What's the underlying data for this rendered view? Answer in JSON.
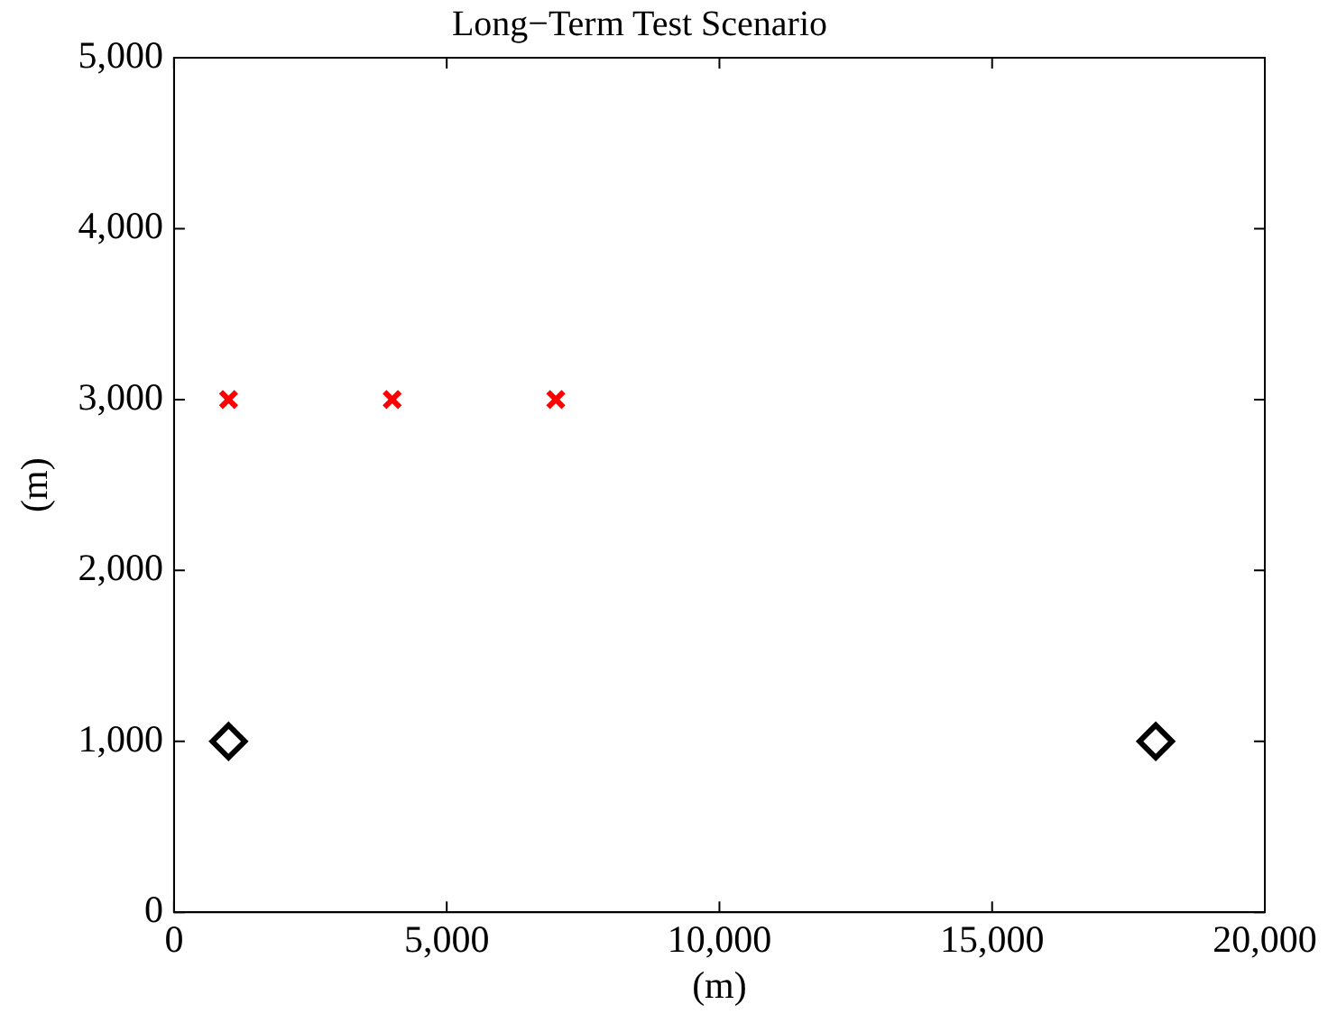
{
  "chart_data": {
    "type": "scatter",
    "title": "Long−Term Test Scenario",
    "xlabel": "(m)",
    "ylabel": "(m)",
    "xlim": [
      0,
      20000
    ],
    "xticks": [
      0,
      {
        "value": 5000,
        "label": "5,000"
      },
      {
        "value": 10000,
        "label": "10,000"
      },
      {
        "value": 15000,
        "label": "15,000"
      },
      {
        "value": 20000,
        "label": "20,000"
      }
    ],
    "ylim": [
      0,
      5000
    ],
    "yticks": [
      0,
      {
        "value": 1000,
        "label": "1,000"
      },
      {
        "value": 2000,
        "label": "2,000"
      },
      {
        "value": 3000,
        "label": "3,000"
      },
      {
        "value": 4000,
        "label": "4,000"
      },
      {
        "value": 5000,
        "label": "5,000"
      }
    ],
    "grid": false,
    "legend": false,
    "series": [
      {
        "color": "#ff0000",
        "marker": "cross",
        "x": [
          1000,
          4000,
          7000
        ],
        "values": [
          3000,
          3000,
          3000
        ]
      },
      {
        "color": "#000000",
        "marker": "diamond",
        "x": [
          1000,
          18000
        ],
        "values": [
          1000,
          1000
        ]
      }
    ]
  }
}
